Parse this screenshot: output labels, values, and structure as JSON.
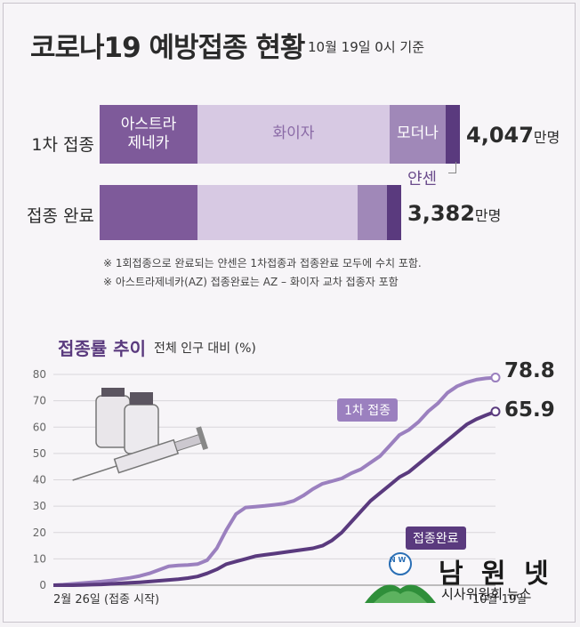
{
  "header": {
    "title": "코로나19 예방접종 현황",
    "subtitle": "10월 19일 0시 기준"
  },
  "bars": {
    "first": {
      "label": "1차 접종",
      "total": "4,047",
      "unit": "만명",
      "segments": [
        {
          "name": "아스트라\n제네카",
          "color": "#7e5a9a"
        },
        {
          "name": "화이자",
          "color": "#d7c9e3"
        },
        {
          "name": "모더나",
          "color": "#a088b8"
        },
        {
          "name": "",
          "color": "#5a3a7e"
        }
      ]
    },
    "complete": {
      "label": "접종 완료",
      "total": "3,382",
      "unit": "만명",
      "segments": [
        {
          "name": "",
          "color": "#7e5a9a"
        },
        {
          "name": "",
          "color": "#d7c9e3"
        },
        {
          "name": "",
          "color": "#a088b8"
        },
        {
          "name": "",
          "color": "#5a3a7e"
        }
      ]
    },
    "janssen_label": "얀센"
  },
  "notes": [
    "※ 1회접종으로 완료되는 얀센은 1차접종과 접종완료 모두에 수치 포함.",
    "※ 아스트라제네카(AZ) 접종완료는 AZ – 화이자 교차 접종자 포함"
  ],
  "chart_data": {
    "type": "line",
    "title": "접종률 추이",
    "subtitle": "전체 인구 대비 (%)",
    "ylim": [
      0,
      80
    ],
    "yticks": [
      "0",
      "10",
      "20",
      "30",
      "40",
      "50",
      "60",
      "70",
      "80"
    ],
    "x_start_label": "2월 26일 (접종 시작)",
    "x_end_label": "10월 19일",
    "grid": true,
    "series": [
      {
        "name": "1차 접종",
        "color": "#9b80bf",
        "final_label": "78.8",
        "values": [
          0,
          0.2,
          0.5,
          0.8,
          1.1,
          1.4,
          1.8,
          2.3,
          2.8,
          3.5,
          4.5,
          5.8,
          7.2,
          7.5,
          7.7,
          8.0,
          9.5,
          14,
          21,
          27,
          29.5,
          29.8,
          30.1,
          30.5,
          31,
          32,
          34,
          36.5,
          38.5,
          39.5,
          40.5,
          42.5,
          44,
          46.5,
          49,
          53,
          57,
          59,
          62,
          66,
          69,
          73,
          75.5,
          77,
          78,
          78.5,
          78.8
        ]
      },
      {
        "name": "접종완료",
        "color": "#5a3a7e",
        "final_label": "65.9",
        "values": [
          0,
          0,
          0,
          0.1,
          0.2,
          0.3,
          0.5,
          0.7,
          0.9,
          1.1,
          1.4,
          1.7,
          2.0,
          2.3,
          2.7,
          3.3,
          4.5,
          6,
          8,
          9,
          10,
          11,
          11.5,
          12,
          12.5,
          13,
          13.5,
          14,
          15,
          17,
          20,
          24,
          28,
          32,
          35,
          38,
          41,
          43,
          46,
          49,
          52,
          55,
          58,
          61,
          63,
          64.5,
          65.9
        ]
      }
    ]
  },
  "logo": {
    "name": "남 원 넷",
    "tagline": "시사위원회 뉴스",
    "badge": "N W"
  }
}
